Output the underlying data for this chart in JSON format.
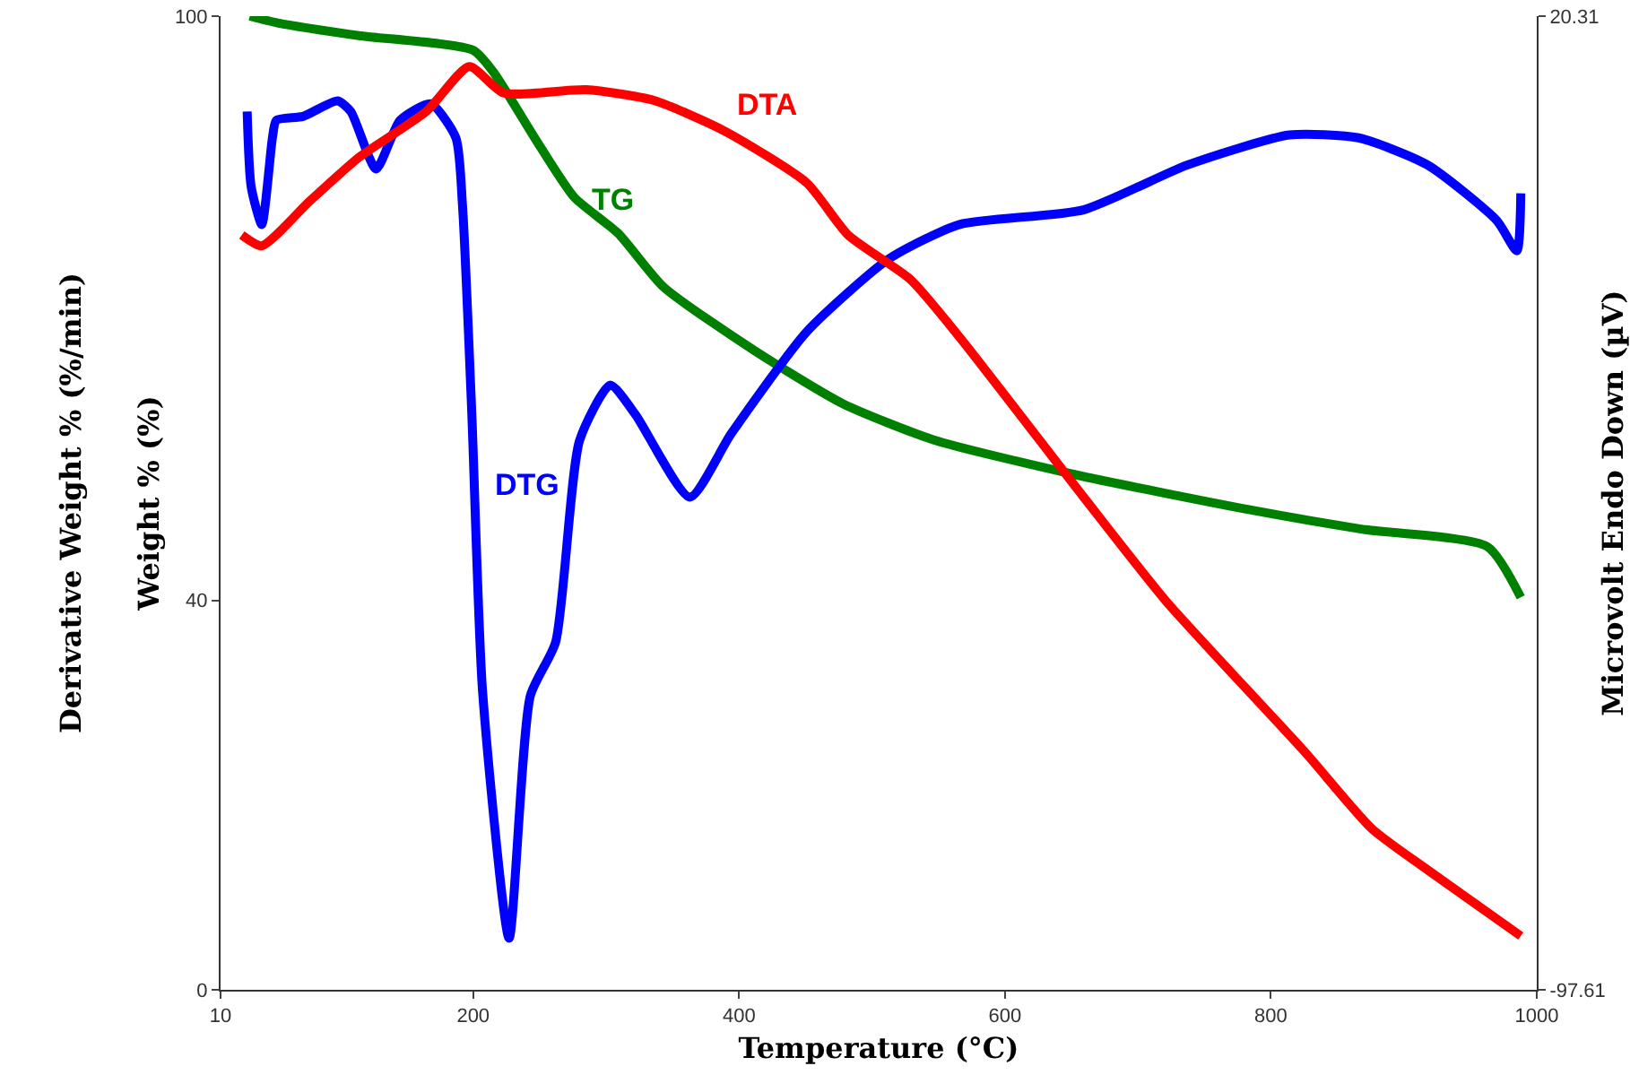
{
  "chart_data": {
    "type": "line",
    "xlabel": "Temperature (°C)",
    "ylabel": "Weight % (%)",
    "y2label": "Microvolt Endo Down (µV)",
    "y3label": "Derivative Weight % (%/min)",
    "xlim": [
      10,
      1000
    ],
    "xticks": [
      10,
      200,
      400,
      600,
      800,
      1000
    ],
    "ylim": [
      0,
      100
    ],
    "yticks": [
      0,
      40,
      100
    ],
    "y2lim": [
      -97.61,
      20.31
    ],
    "y2ticks": [
      -97.61,
      20.31
    ],
    "grid": false,
    "legend": false,
    "marker": "none",
    "line_style": "solid",
    "series": [
      {
        "name": "DTA",
        "color": "#ff0000",
        "axis": "y2",
        "x": [
          26,
          41,
          77,
          114,
          165,
          197,
          223,
          285,
          336,
          389,
          451,
          482,
          529,
          566,
          659,
          721,
          825,
          876,
          918,
          988
        ],
        "values": [
          -6.2,
          -7.5,
          -2.1,
          3.2,
          8.8,
          14.2,
          11.0,
          11.4,
          10.1,
          6.4,
          0.1,
          -6.2,
          -11.6,
          -18.6,
          -37.9,
          -50.5,
          -68.7,
          -78.1,
          -83.1,
          -91.1
        ]
      },
      {
        "name": "TG",
        "color": "#008000",
        "axis": "y",
        "x": [
          32,
          53,
          114,
          200,
          215,
          249,
          276,
          309,
          343,
          411,
          478,
          546,
          653,
          788,
          869,
          963,
          988
        ],
        "values": [
          100,
          99.3,
          98,
          96.5,
          94.3,
          86.9,
          81.4,
          77.7,
          72.2,
          65.7,
          60.2,
          56.5,
          52.9,
          49.2,
          47.3,
          45.5,
          40.3
        ]
      },
      {
        "name": "DTG",
        "color": "#0000ff",
        "axis": "y",
        "x": [
          30,
          33,
          41,
          49,
          52,
          72,
          98,
          108,
          127,
          145,
          168,
          187,
          192,
          199,
          207,
          227,
          243,
          262,
          280,
          303,
          322,
          363,
          394,
          451,
          513,
          566,
          659,
          737,
          814,
          866,
          918,
          970,
          985,
          988
        ],
        "values": [
          90.2,
          82.5,
          78.6,
          87.5,
          89.3,
          89.7,
          91.3,
          90.2,
          84.3,
          89.3,
          91.0,
          87.5,
          80.5,
          59.1,
          30.8,
          5.3,
          30.2,
          35.7,
          56.4,
          62.1,
          59.1,
          50.6,
          57.1,
          67.6,
          75.1,
          78.6,
          80.1,
          84.7,
          87.8,
          87.5,
          84.7,
          79.0,
          75.9,
          81.8
        ]
      }
    ]
  }
}
